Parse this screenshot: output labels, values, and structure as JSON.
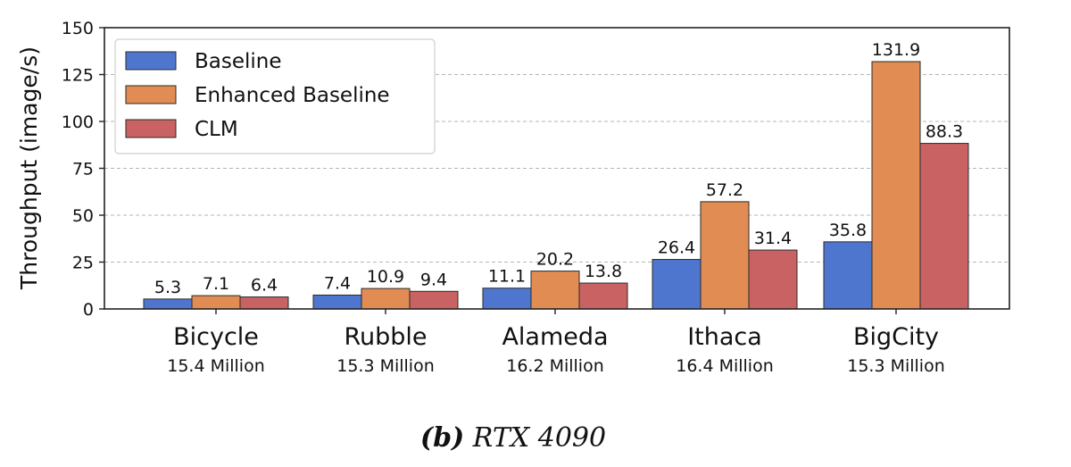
{
  "chart_data": {
    "type": "bar",
    "ylabel": "Throughput (image/s)",
    "ylim": [
      0,
      150
    ],
    "yticks": [
      0,
      25,
      50,
      75,
      100,
      125,
      150
    ],
    "grid": "horizontal-dashed",
    "legend_position": "top-left",
    "categories": [
      "Bicycle",
      "Rubble",
      "Alameda",
      "Ithaca",
      "BigCity"
    ],
    "category_sublabels": [
      "15.4 Million",
      "15.3 Million",
      "16.2 Million",
      "16.4 Million",
      "15.3 Million"
    ],
    "series": [
      {
        "name": "Baseline",
        "color": "#4f76cf",
        "values": [
          5.3,
          7.4,
          11.1,
          26.4,
          35.8
        ],
        "labels": [
          "5.3",
          "7.4",
          "11.1",
          "26.4",
          "35.8"
        ]
      },
      {
        "name": "Enhanced Baseline",
        "color": "#e08c53",
        "values": [
          7.1,
          10.9,
          20.2,
          57.2,
          131.9
        ],
        "labels": [
          "7.1",
          "10.9",
          "20.2",
          "57.2",
          "131.9"
        ]
      },
      {
        "name": "CLM",
        "color": "#c96262",
        "values": [
          6.4,
          9.4,
          13.8,
          31.4,
          88.3
        ],
        "labels": [
          "6.4",
          "9.4",
          "13.8",
          "31.4",
          "88.3"
        ]
      }
    ]
  },
  "caption": {
    "label": "(b)",
    "text": "RTX 4090"
  }
}
